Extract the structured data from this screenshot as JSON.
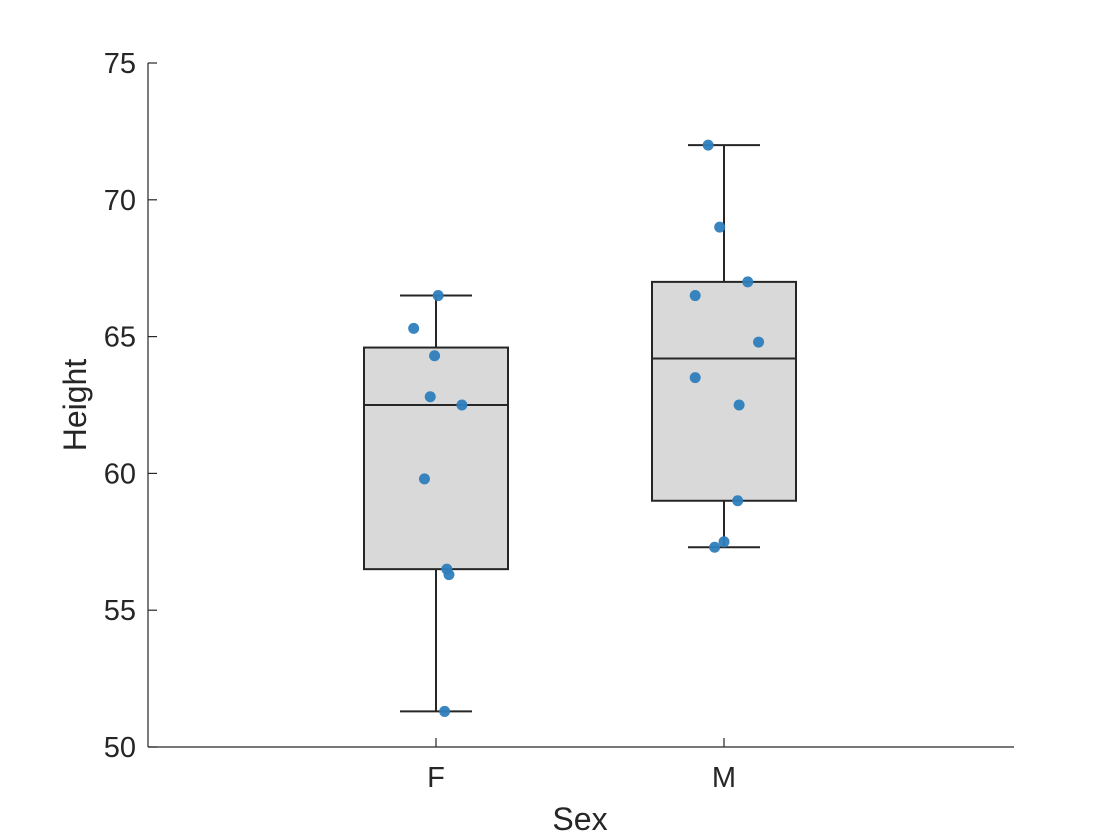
{
  "chart_data": {
    "type": "box",
    "xlabel": "Sex",
    "ylabel": "Height",
    "ylim": [
      50,
      75
    ],
    "yticks": [
      50,
      55,
      60,
      65,
      70,
      75
    ],
    "grid": false,
    "categories": [
      "F",
      "M"
    ],
    "box_fill_color": "#d9d9d9",
    "box_edge_color": "#262626",
    "point_color": "#2e7ebc",
    "boxes": [
      {
        "category": "F",
        "whisker_low": 51.3,
        "q1": 56.5,
        "median": 62.5,
        "q3": 64.6,
        "whisker_high": 66.5
      },
      {
        "category": "M",
        "whisker_low": 57.3,
        "q1": 59.0,
        "median": 64.2,
        "q3": 67.0,
        "whisker_high": 72.0
      }
    ],
    "points": [
      {
        "category": "F",
        "y": 66.5
      },
      {
        "category": "F",
        "y": 65.3
      },
      {
        "category": "F",
        "y": 64.3
      },
      {
        "category": "F",
        "y": 62.8
      },
      {
        "category": "F",
        "y": 62.5
      },
      {
        "category": "F",
        "y": 59.8
      },
      {
        "category": "F",
        "y": 56.5
      },
      {
        "category": "F",
        "y": 56.3
      },
      {
        "category": "F",
        "y": 51.3
      },
      {
        "category": "M",
        "y": 72.0
      },
      {
        "category": "M",
        "y": 69.0
      },
      {
        "category": "M",
        "y": 67.0
      },
      {
        "category": "M",
        "y": 66.5
      },
      {
        "category": "M",
        "y": 64.8
      },
      {
        "category": "M",
        "y": 63.5
      },
      {
        "category": "M",
        "y": 62.5
      },
      {
        "category": "M",
        "y": 59.0
      },
      {
        "category": "M",
        "y": 57.5
      },
      {
        "category": "M",
        "y": 57.3
      }
    ]
  }
}
